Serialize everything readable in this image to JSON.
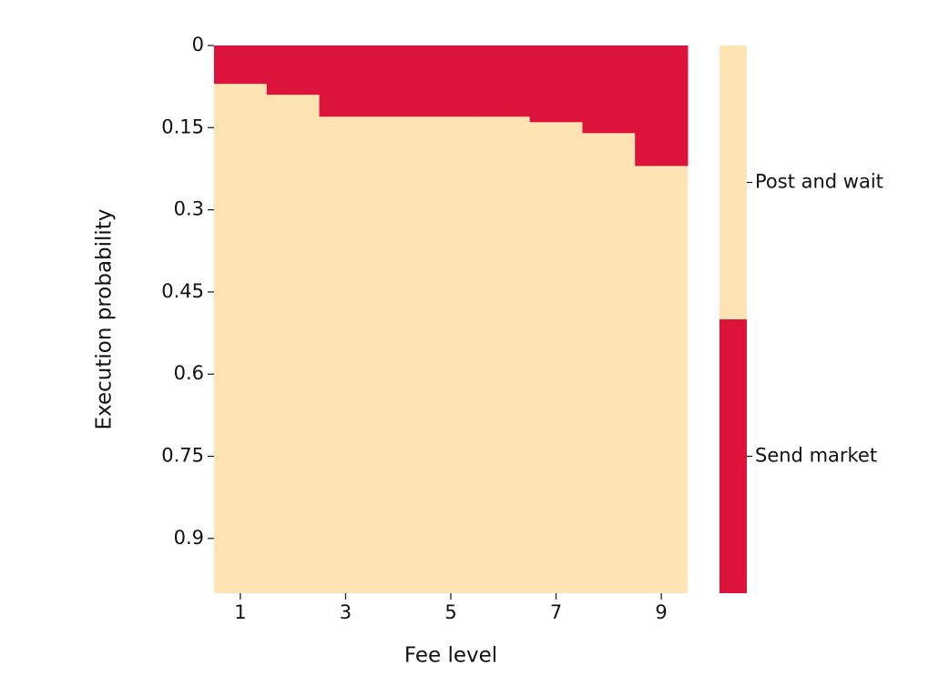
{
  "chart_data": {
    "type": "heatmap",
    "x_label": "Fee level",
    "y_label": "Execution probability",
    "categories": [
      1,
      null,
      3,
      null,
      5,
      null,
      7,
      null,
      9
    ],
    "series": [
      {
        "name": "Send market",
        "color": "#dc143c",
        "values": [
          0.07,
          0.09,
          0.13,
          0.13,
          0.13,
          0.13,
          0.14,
          0.16,
          0.22
        ]
      }
    ],
    "background": {
      "name": "Post and wait",
      "color": "#fee3b5"
    },
    "ylim": [
      0,
      1
    ],
    "yticks": [
      0,
      0.15,
      0.3,
      0.45,
      0.6,
      0.75,
      0.9
    ]
  }
}
